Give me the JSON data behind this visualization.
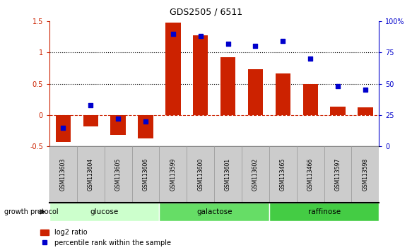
{
  "title": "GDS2505 / 6511",
  "categories": [
    "GSM113603",
    "GSM113604",
    "GSM113605",
    "GSM113606",
    "GSM113599",
    "GSM113600",
    "GSM113601",
    "GSM113602",
    "GSM113465",
    "GSM113466",
    "GSM113597",
    "GSM113598"
  ],
  "log2_ratio": [
    -0.43,
    -0.18,
    -0.32,
    -0.37,
    1.48,
    1.28,
    0.93,
    0.73,
    0.66,
    0.49,
    0.13,
    0.12
  ],
  "percentile_rank": [
    15,
    33,
    22,
    20,
    90,
    88,
    82,
    80,
    84,
    70,
    48,
    45
  ],
  "bar_color": "#cc2200",
  "dot_color": "#0000cc",
  "ylim_left": [
    -0.5,
    1.5
  ],
  "ylim_right": [
    0,
    100
  ],
  "yticks_left": [
    -0.5,
    0.0,
    0.5,
    1.0,
    1.5
  ],
  "ytick_labels_left": [
    "-0.5",
    "0",
    "0.5",
    "1",
    "1.5"
  ],
  "yticks_right": [
    0,
    25,
    50,
    75,
    100
  ],
  "ytick_labels_right": [
    "0",
    "25",
    "50",
    "75",
    "100%"
  ],
  "hlines": [
    0.5,
    1.0
  ],
  "hline_zero_color": "#cc2200",
  "groups": [
    {
      "label": "glucose",
      "start": 0,
      "end": 3,
      "color": "#ccffcc"
    },
    {
      "label": "galactose",
      "start": 4,
      "end": 7,
      "color": "#66dd66"
    },
    {
      "label": "raffinose",
      "start": 8,
      "end": 11,
      "color": "#44cc44"
    }
  ],
  "group_label": "growth protocol",
  "legend_log2": "log2 ratio",
  "legend_pct": "percentile rank within the sample",
  "label_box_color": "#cccccc",
  "label_box_edge": "#999999"
}
